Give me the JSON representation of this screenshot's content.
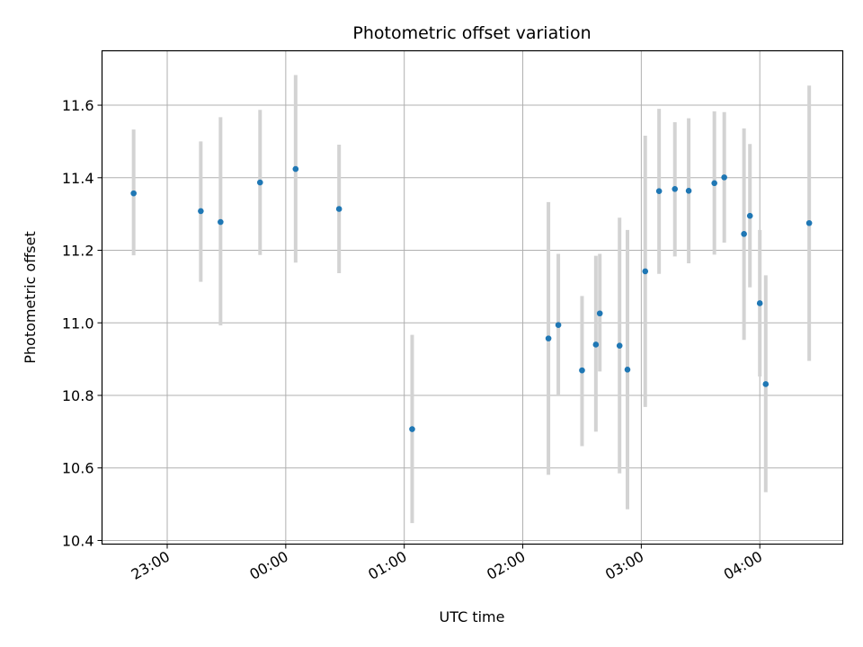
{
  "chart_data": {
    "type": "scatter",
    "title": "Photometric offset variation",
    "xlabel": "UTC time",
    "ylabel": "Photometric offset",
    "grid": true,
    "xlim": [
      "22:27",
      "04:42"
    ],
    "ylim": [
      10.39,
      11.75
    ],
    "x_ticks": [
      "23:00",
      "00:00",
      "01:00",
      "02:00",
      "03:00",
      "04:00"
    ],
    "y_ticks": [
      "10.4",
      "10.6",
      "10.8",
      "11.0",
      "11.2",
      "11.4",
      "11.6"
    ],
    "series": [
      {
        "marker_color": "#1f77b4",
        "errorbar_color": "#d3d3d3",
        "points": [
          {
            "t": "22:43",
            "y": 11.357,
            "lo": 11.186,
            "hi": 11.533
          },
          {
            "t": "23:17",
            "y": 11.308,
            "lo": 11.113,
            "hi": 11.5
          },
          {
            "t": "23:27",
            "y": 11.278,
            "lo": 10.993,
            "hi": 11.567
          },
          {
            "t": "23:47",
            "y": 11.387,
            "lo": 11.187,
            "hi": 11.587
          },
          {
            "t": "00:05",
            "y": 11.424,
            "lo": 11.166,
            "hi": 11.683
          },
          {
            "t": "00:27",
            "y": 11.314,
            "lo": 11.137,
            "hi": 11.491
          },
          {
            "t": "01:04",
            "y": 10.707,
            "lo": 10.448,
            "hi": 10.967
          },
          {
            "t": "02:13",
            "y": 10.957,
            "lo": 10.581,
            "hi": 11.333
          },
          {
            "t": "02:18",
            "y": 10.994,
            "lo": 10.8,
            "hi": 11.19
          },
          {
            "t": "02:30",
            "y": 10.869,
            "lo": 10.66,
            "hi": 11.074
          },
          {
            "t": "02:37",
            "y": 10.94,
            "lo": 10.7,
            "hi": 11.185
          },
          {
            "t": "02:39",
            "y": 11.026,
            "lo": 10.866,
            "hi": 11.19
          },
          {
            "t": "02:49",
            "y": 10.937,
            "lo": 10.585,
            "hi": 11.29
          },
          {
            "t": "02:53",
            "y": 10.871,
            "lo": 10.486,
            "hi": 11.256
          },
          {
            "t": "03:02",
            "y": 11.142,
            "lo": 10.768,
            "hi": 11.516
          },
          {
            "t": "03:09",
            "y": 11.363,
            "lo": 11.135,
            "hi": 11.59
          },
          {
            "t": "03:17",
            "y": 11.369,
            "lo": 11.183,
            "hi": 11.553
          },
          {
            "t": "03:24",
            "y": 11.364,
            "lo": 11.164,
            "hi": 11.564
          },
          {
            "t": "03:37",
            "y": 11.385,
            "lo": 11.188,
            "hi": 11.583
          },
          {
            "t": "03:42",
            "y": 11.401,
            "lo": 11.221,
            "hi": 11.581
          },
          {
            "t": "03:52",
            "y": 11.245,
            "lo": 10.953,
            "hi": 11.536
          },
          {
            "t": "03:55",
            "y": 11.295,
            "lo": 11.098,
            "hi": 11.493
          },
          {
            "t": "04:00",
            "y": 11.054,
            "lo": 10.852,
            "hi": 11.256
          },
          {
            "t": "04:03",
            "y": 10.831,
            "lo": 10.533,
            "hi": 11.131
          },
          {
            "t": "04:25",
            "y": 11.275,
            "lo": 10.895,
            "hi": 11.654
          }
        ]
      }
    ]
  }
}
